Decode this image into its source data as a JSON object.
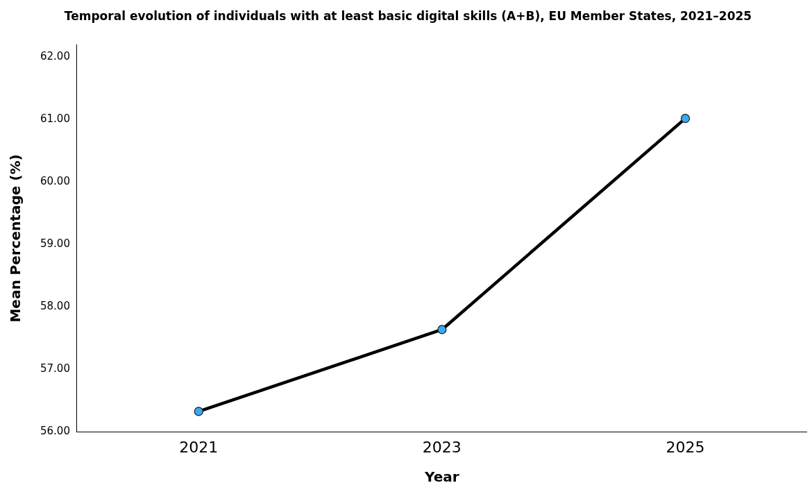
{
  "chart_data": {
    "type": "line",
    "title": "Temporal evolution of individuals with at least basic digital skills (A+B), EU Member States, 2021–2025",
    "xlabel": "Year",
    "ylabel": "Mean Percentage (%)",
    "categories": [
      "2021",
      "2023",
      "2025"
    ],
    "series": [
      {
        "color": "#000000",
        "values": [
          56.33,
          57.64,
          61.02
        ]
      }
    ],
    "ylim": [
      56,
      62.2
    ],
    "yticks": [
      {
        "value": 56,
        "label": "56.00"
      },
      {
        "value": 57,
        "label": "57.00"
      },
      {
        "value": 58,
        "label": "58.00"
      },
      {
        "value": 59,
        "label": "59.00"
      },
      {
        "value": 60,
        "label": "60.00"
      },
      {
        "value": 61,
        "label": "61.00"
      },
      {
        "value": 62,
        "label": "62.00"
      }
    ],
    "grid": false,
    "legend": false,
    "marker": "circle",
    "line_style": "solid"
  }
}
